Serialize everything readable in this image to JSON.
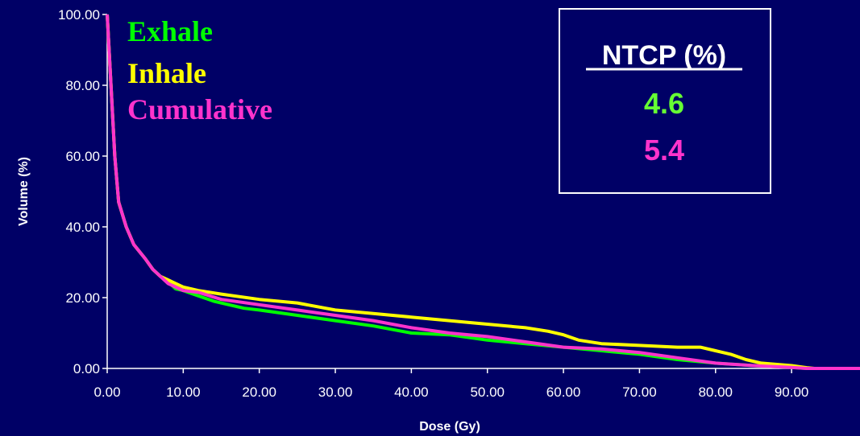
{
  "chart_data": {
    "type": "line",
    "title": "",
    "xlabel": "Dose (Gy)",
    "ylabel": "Volume (%)",
    "xlim": [
      0,
      99
    ],
    "ylim": [
      0,
      100
    ],
    "x_ticks": [
      "0.00",
      "10.00",
      "20.00",
      "30.00",
      "40.00",
      "50.00",
      "60.00",
      "70.00",
      "80.00",
      "90.00"
    ],
    "y_ticks": [
      "0.00",
      "20.00",
      "40.00",
      "60.00",
      "80.00",
      "100.00"
    ],
    "legend_placement": "top-left",
    "series": [
      {
        "name": "Exhale",
        "color": "#00ff00",
        "points": [
          [
            0,
            100
          ],
          [
            0.5,
            80
          ],
          [
            1,
            60
          ],
          [
            1.5,
            47
          ],
          [
            2.5,
            40
          ],
          [
            3.5,
            35
          ],
          [
            5,
            31
          ],
          [
            6,
            28
          ],
          [
            7,
            26
          ],
          [
            8,
            24.5
          ],
          [
            9,
            22.5
          ],
          [
            10,
            22
          ],
          [
            12,
            20.5
          ],
          [
            14,
            19
          ],
          [
            16,
            18
          ],
          [
            18,
            17
          ],
          [
            20,
            16.5
          ],
          [
            25,
            15
          ],
          [
            30,
            13.5
          ],
          [
            35,
            12
          ],
          [
            40,
            10
          ],
          [
            45,
            9.5
          ],
          [
            50,
            8
          ],
          [
            55,
            7
          ],
          [
            60,
            6
          ],
          [
            65,
            5
          ],
          [
            70,
            4
          ],
          [
            75,
            2.5
          ],
          [
            80,
            1.5
          ],
          [
            85,
            0.8
          ],
          [
            90,
            0.3
          ],
          [
            92,
            0
          ],
          [
            99,
            0
          ]
        ]
      },
      {
        "name": "Inhale",
        "color": "#ffff00",
        "points": [
          [
            0,
            100
          ],
          [
            0.5,
            80
          ],
          [
            1,
            60
          ],
          [
            1.5,
            47
          ],
          [
            2.5,
            40
          ],
          [
            3.5,
            35
          ],
          [
            5,
            31
          ],
          [
            6,
            28
          ],
          [
            7,
            26
          ],
          [
            8,
            25
          ],
          [
            9,
            24
          ],
          [
            10,
            23
          ],
          [
            12,
            22
          ],
          [
            15,
            21
          ],
          [
            20,
            19.5
          ],
          [
            25,
            18.5
          ],
          [
            30,
            16.5
          ],
          [
            35,
            15.5
          ],
          [
            40,
            14.5
          ],
          [
            45,
            13.5
          ],
          [
            50,
            12.5
          ],
          [
            55,
            11.5
          ],
          [
            58,
            10.5
          ],
          [
            60,
            9.5
          ],
          [
            62,
            8
          ],
          [
            65,
            7
          ],
          [
            70,
            6.5
          ],
          [
            75,
            6
          ],
          [
            78,
            6
          ],
          [
            80,
            5
          ],
          [
            82,
            4
          ],
          [
            84,
            2.5
          ],
          [
            86,
            1.5
          ],
          [
            90,
            0.8
          ],
          [
            92,
            0.2
          ],
          [
            93,
            0
          ],
          [
            99,
            0
          ]
        ]
      },
      {
        "name": "Cumulative",
        "color": "#ff33cc",
        "points": [
          [
            0,
            100
          ],
          [
            0.5,
            80
          ],
          [
            1,
            60
          ],
          [
            1.5,
            47
          ],
          [
            2.5,
            40
          ],
          [
            3.5,
            35
          ],
          [
            5,
            31
          ],
          [
            6,
            28
          ],
          [
            7,
            26
          ],
          [
            8,
            24
          ],
          [
            9,
            23
          ],
          [
            10,
            22
          ],
          [
            12,
            21.5
          ],
          [
            15,
            19.5
          ],
          [
            20,
            18
          ],
          [
            25,
            16.5
          ],
          [
            30,
            15
          ],
          [
            35,
            13.5
          ],
          [
            40,
            11.5
          ],
          [
            45,
            10
          ],
          [
            50,
            9
          ],
          [
            55,
            7.5
          ],
          [
            60,
            6
          ],
          [
            65,
            5.5
          ],
          [
            70,
            4.5
          ],
          [
            75,
            3
          ],
          [
            80,
            1.5
          ],
          [
            85,
            0.8
          ],
          [
            90,
            0.3
          ],
          [
            92,
            0
          ],
          [
            99,
            0
          ]
        ]
      }
    ]
  },
  "legend": [
    {
      "label": "Exhale",
      "color": "#00ff00"
    },
    {
      "label": "Inhale",
      "color": "#ffff00"
    },
    {
      "label": "Cumulative",
      "color": "#ff33cc"
    }
  ],
  "ntcp_box": {
    "title": "NTCP (%)",
    "values": [
      {
        "value": "4.6",
        "color": "#66ff33"
      },
      {
        "value": "5.4",
        "color": "#ff33cc"
      }
    ]
  }
}
